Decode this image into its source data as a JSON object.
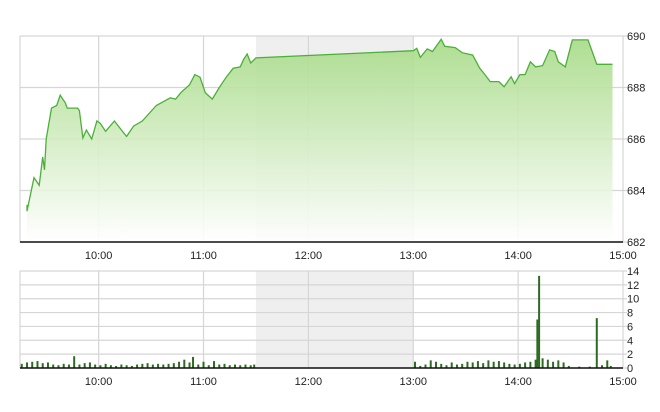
{
  "chart_data": [
    {
      "type": "area",
      "title": "",
      "xlabel": "",
      "ylabel": "",
      "x_range": [
        "09:15",
        "15:00"
      ],
      "ylim": [
        682,
        690
      ],
      "y_ticks": [
        "682",
        "684",
        "686",
        "688",
        "690"
      ],
      "x_ticks": [
        "10:00",
        "11:00",
        "12:00",
        "13:00",
        "14:00",
        "15:00"
      ],
      "y_axis_side": "right",
      "grid": true,
      "shaded_interval": [
        "11:30",
        "13:00"
      ],
      "colors": {
        "line": "#4caf3a",
        "fill_top": "#a6da86",
        "fill_bottom": "#ffffff",
        "grid": "#d6d6d6",
        "shade": "#efefef"
      },
      "points": [
        [
          "09:19",
          683.44
        ],
        [
          "09:19",
          683.2
        ],
        [
          "09:23",
          684.5
        ],
        [
          "09:26",
          684.2
        ],
        [
          "09:28",
          685.3
        ],
        [
          "09:29",
          684.8
        ],
        [
          "09:30",
          686.0
        ],
        [
          "09:33",
          687.2
        ],
        [
          "09:36",
          687.3
        ],
        [
          "09:38",
          687.7
        ],
        [
          "09:41",
          687.4
        ],
        [
          "09:42",
          687.2
        ],
        [
          "09:48",
          687.2
        ],
        [
          "09:49",
          687.1
        ],
        [
          "09:51",
          686.04
        ],
        [
          "09:53",
          686.35
        ],
        [
          "09:56",
          686.0
        ],
        [
          "09:59",
          686.7
        ],
        [
          "10:01",
          686.6
        ],
        [
          "10:04",
          686.3
        ],
        [
          "10:09",
          686.7
        ],
        [
          "10:13",
          686.35
        ],
        [
          "10:16",
          686.1
        ],
        [
          "10:20",
          686.5
        ],
        [
          "10:25",
          686.7
        ],
        [
          "10:33",
          687.3
        ],
        [
          "10:41",
          687.6
        ],
        [
          "10:44",
          687.55
        ],
        [
          "10:47",
          687.8
        ],
        [
          "10:52",
          688.1
        ],
        [
          "10:55",
          688.5
        ],
        [
          "10:58",
          688.4
        ],
        [
          "11:01",
          687.8
        ],
        [
          "11:05",
          687.55
        ],
        [
          "11:09",
          688.0
        ],
        [
          "11:13",
          688.4
        ],
        [
          "11:17",
          688.75
        ],
        [
          "11:21",
          688.8
        ],
        [
          "11:23",
          689.1
        ],
        [
          "11:25",
          689.3
        ],
        [
          "11:27",
          688.95
        ],
        [
          "11:30",
          689.15
        ],
        [
          "13:00",
          689.43
        ],
        [
          "13:02",
          689.52
        ],
        [
          "13:04",
          689.17
        ],
        [
          "13:08",
          689.5
        ],
        [
          "13:11",
          689.4
        ],
        [
          "13:16",
          689.87
        ],
        [
          "13:18",
          689.6
        ],
        [
          "13:24",
          689.55
        ],
        [
          "13:28",
          689.35
        ],
        [
          "13:34",
          689.26
        ],
        [
          "13:38",
          688.75
        ],
        [
          "13:41",
          688.5
        ],
        [
          "13:44",
          688.23
        ],
        [
          "13:49",
          688.23
        ],
        [
          "13:52",
          688.03
        ],
        [
          "13:56",
          688.42
        ],
        [
          "13:58",
          688.15
        ],
        [
          "14:01",
          688.5
        ],
        [
          "14:04",
          688.5
        ],
        [
          "14:07",
          689.0
        ],
        [
          "14:10",
          688.8
        ],
        [
          "14:14",
          688.85
        ],
        [
          "14:18",
          689.46
        ],
        [
          "14:21",
          689.4
        ],
        [
          "14:23",
          689.0
        ],
        [
          "14:27",
          688.8
        ],
        [
          "14:31",
          689.85
        ],
        [
          "14:40",
          689.85
        ],
        [
          "14:45",
          688.9
        ],
        [
          "14:54",
          688.9
        ]
      ]
    },
    {
      "type": "bar",
      "title": "",
      "xlabel": "",
      "ylabel": "",
      "x_range": [
        "09:15",
        "15:00"
      ],
      "ylim": [
        0,
        14
      ],
      "y_ticks": [
        "0",
        "2",
        "4",
        "6",
        "8",
        "10",
        "12",
        "14"
      ],
      "x_ticks": [
        "10:00",
        "11:00",
        "12:00",
        "13:00",
        "14:00",
        "15:00"
      ],
      "y_axis_side": "right",
      "grid": true,
      "shaded_interval": [
        "11:30",
        "13:00"
      ],
      "colors": {
        "bar": "#2e6b22",
        "grid": "#d6d6d6",
        "shade": "#efefef"
      },
      "bars": [
        [
          "09:16",
          0.6
        ],
        [
          "09:19",
          0.8
        ],
        [
          "09:22",
          0.9
        ],
        [
          "09:25",
          1.0
        ],
        [
          "09:28",
          0.7
        ],
        [
          "09:31",
          0.8
        ],
        [
          "09:34",
          0.5
        ],
        [
          "09:37",
          0.4
        ],
        [
          "09:40",
          0.6
        ],
        [
          "09:43",
          0.5
        ],
        [
          "09:46",
          1.7
        ],
        [
          "09:49",
          0.5
        ],
        [
          "09:52",
          0.7
        ],
        [
          "09:55",
          0.8
        ],
        [
          "09:58",
          0.5
        ],
        [
          "10:01",
          0.4
        ],
        [
          "10:04",
          0.6
        ],
        [
          "10:07",
          0.4
        ],
        [
          "10:10",
          0.3
        ],
        [
          "10:13",
          0.5
        ],
        [
          "10:16",
          0.4
        ],
        [
          "10:19",
          0.3
        ],
        [
          "10:22",
          0.5
        ],
        [
          "10:25",
          0.6
        ],
        [
          "10:28",
          0.7
        ],
        [
          "10:31",
          0.5
        ],
        [
          "10:34",
          0.6
        ],
        [
          "10:37",
          0.5
        ],
        [
          "10:40",
          0.6
        ],
        [
          "10:43",
          0.7
        ],
        [
          "10:46",
          0.9
        ],
        [
          "10:49",
          1.2
        ],
        [
          "10:52",
          0.8
        ],
        [
          "10:54",
          1.6
        ],
        [
          "10:57",
          0.5
        ],
        [
          "11:00",
          0.9
        ],
        [
          "11:03",
          0.4
        ],
        [
          "11:06",
          1.0
        ],
        [
          "11:09",
          0.5
        ],
        [
          "11:12",
          0.6
        ],
        [
          "11:15",
          0.4
        ],
        [
          "11:18",
          0.5
        ],
        [
          "11:21",
          0.4
        ],
        [
          "11:24",
          0.5
        ],
        [
          "11:27",
          0.4
        ],
        [
          "11:29",
          0.5
        ],
        [
          "13:01",
          0.9
        ],
        [
          "13:04",
          0.3
        ],
        [
          "13:07",
          0.5
        ],
        [
          "13:10",
          1.1
        ],
        [
          "13:13",
          0.9
        ],
        [
          "13:16",
          0.6
        ],
        [
          "13:19",
          0.4
        ],
        [
          "13:22",
          0.8
        ],
        [
          "13:25",
          0.5
        ],
        [
          "13:28",
          0.6
        ],
        [
          "13:31",
          0.9
        ],
        [
          "13:34",
          0.8
        ],
        [
          "13:37",
          1.0
        ],
        [
          "13:40",
          0.7
        ],
        [
          "13:43",
          1.1
        ],
        [
          "13:46",
          0.9
        ],
        [
          "13:49",
          1.0
        ],
        [
          "13:52",
          0.8
        ],
        [
          "13:55",
          0.6
        ],
        [
          "13:58",
          0.5
        ],
        [
          "14:01",
          0.6
        ],
        [
          "14:04",
          0.8
        ],
        [
          "14:07",
          0.9
        ],
        [
          "14:10",
          1.2
        ],
        [
          "14:11",
          7.0
        ],
        [
          "14:12",
          13.3
        ],
        [
          "14:14",
          1.4
        ],
        [
          "14:17",
          1.2
        ],
        [
          "14:20",
          0.9
        ],
        [
          "14:23",
          1.1
        ],
        [
          "14:26",
          0.8
        ],
        [
          "14:29",
          0.3
        ],
        [
          "14:35",
          0.2
        ],
        [
          "14:41",
          0.2
        ],
        [
          "14:45",
          7.2
        ],
        [
          "14:48",
          0.4
        ],
        [
          "14:51",
          1.1
        ],
        [
          "14:53",
          0.3
        ]
      ]
    }
  ]
}
